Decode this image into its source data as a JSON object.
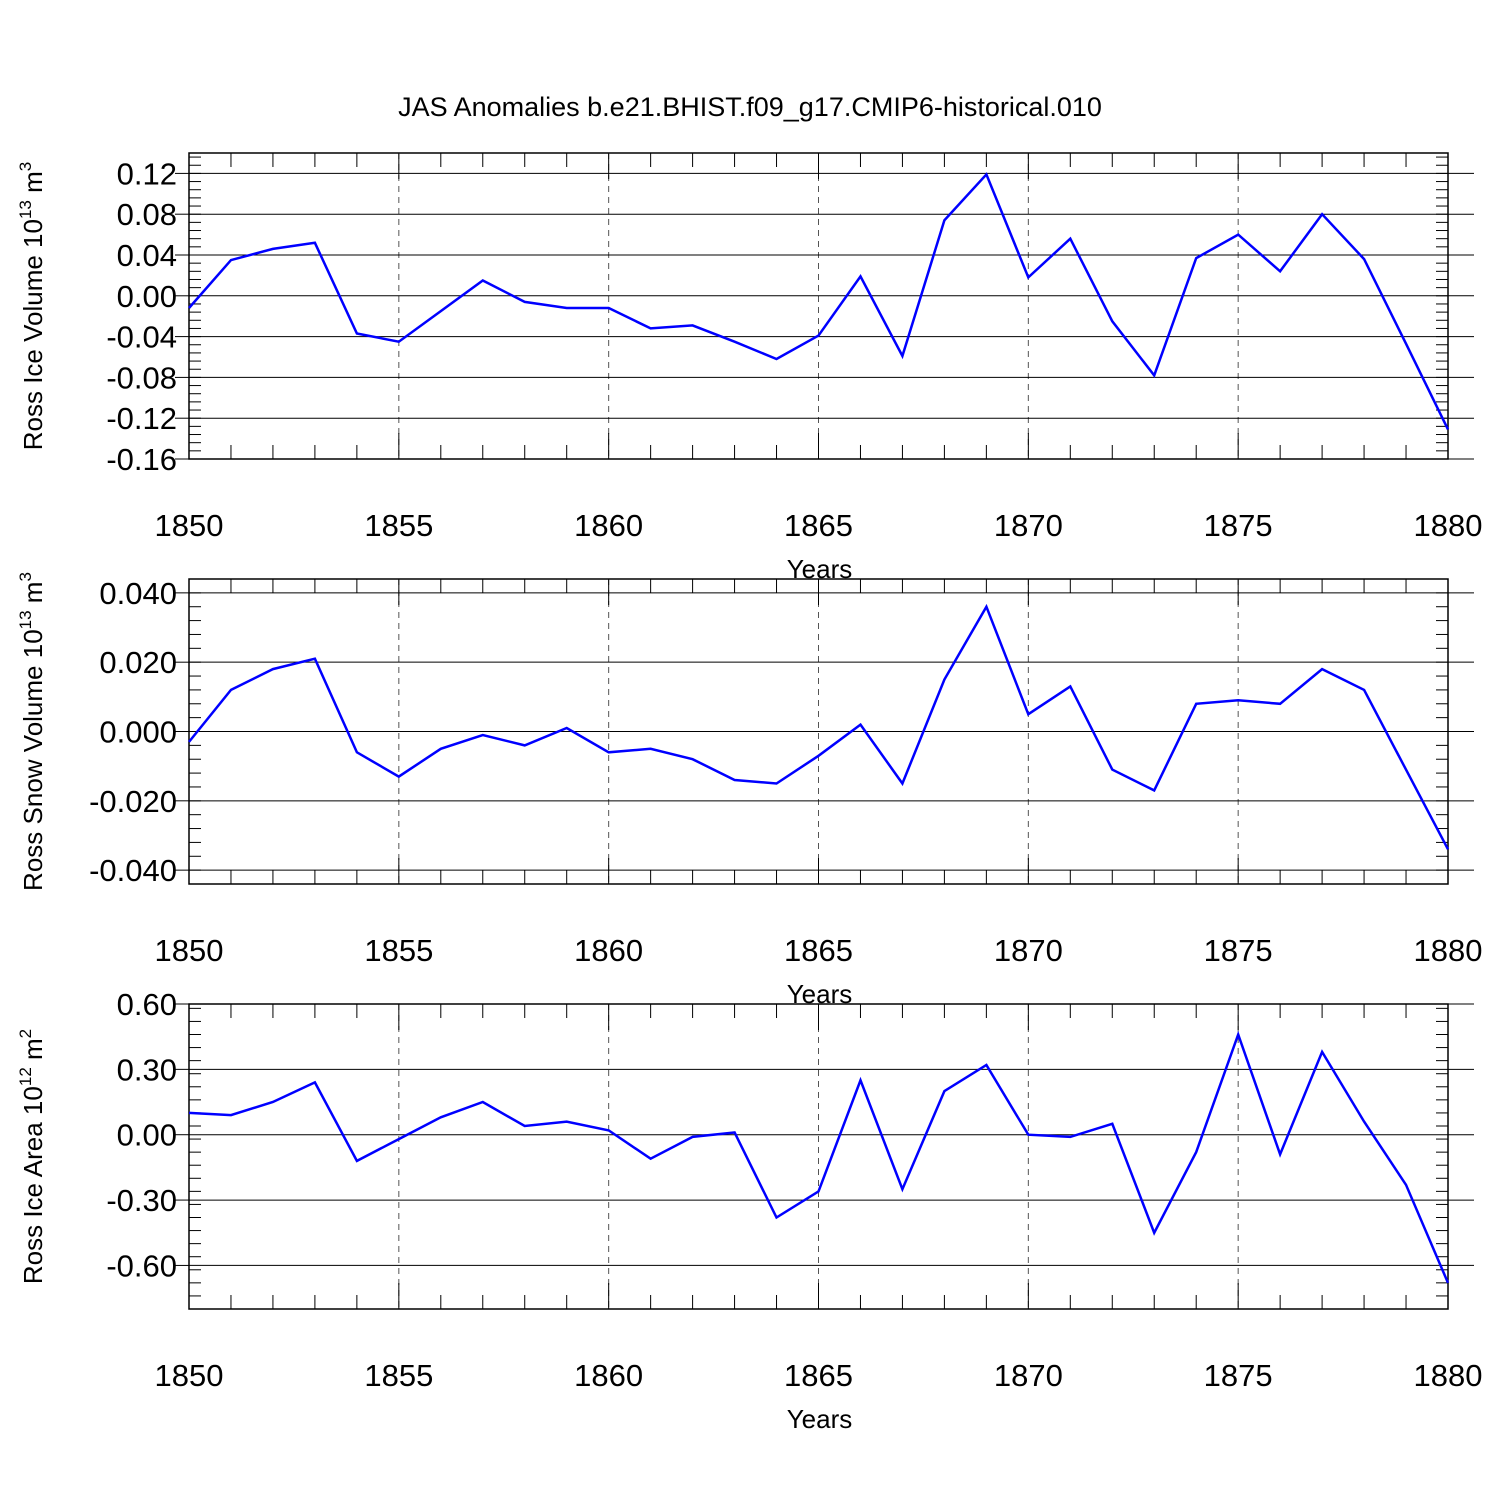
{
  "title": "JAS Anomalies b.e21.BHIST.f09_g17.CMIP6-historical.010",
  "series_color": "#0000ff",
  "chart_data": [
    {
      "type": "line",
      "ylabel": {
        "prefix": "Ross Ice Volume 10",
        "exp": "13",
        "unit": " m",
        "unit_exp": "3"
      },
      "xlabel": "Years",
      "xlim": [
        1850,
        1880
      ],
      "ylim": [
        -0.16,
        0.14
      ],
      "yticks": [
        0.12,
        0.08,
        0.04,
        0.0,
        -0.04,
        -0.08,
        -0.12,
        -0.16
      ],
      "ytick_labels": [
        "0.12",
        "0.08",
        "0.04",
        "0.00",
        "-0.04",
        "-0.08",
        "-0.12",
        "-0.16"
      ],
      "xticks": [
        1850,
        1855,
        1860,
        1865,
        1870,
        1875,
        1880
      ],
      "xtick_labels": [
        "1850",
        "1855",
        "1860",
        "1865",
        "1870",
        "1875",
        "1880"
      ],
      "x": [
        1850,
        1851,
        1852,
        1853,
        1854,
        1855,
        1856,
        1857,
        1858,
        1859,
        1860,
        1861,
        1862,
        1863,
        1864,
        1865,
        1866,
        1867,
        1868,
        1869,
        1870,
        1871,
        1872,
        1873,
        1874,
        1875,
        1876,
        1877,
        1878,
        1879,
        1880
      ],
      "values": [
        -0.012,
        0.035,
        0.046,
        0.052,
        -0.037,
        -0.045,
        -0.015,
        0.015,
        -0.006,
        -0.012,
        -0.012,
        -0.032,
        -0.029,
        -0.045,
        -0.062,
        -0.039,
        0.019,
        -0.059,
        0.074,
        0.119,
        0.018,
        0.056,
        -0.025,
        -0.078,
        0.037,
        0.06,
        0.024,
        0.08,
        0.036,
        -0.047,
        -0.131
      ]
    },
    {
      "type": "line",
      "ylabel": {
        "prefix": "Ross Snow Volume 10",
        "exp": "13",
        "unit": " m",
        "unit_exp": "3"
      },
      "xlabel": "Years",
      "xlim": [
        1850,
        1880
      ],
      "ylim": [
        -0.044,
        0.044
      ],
      "yticks": [
        0.04,
        0.02,
        0.0,
        -0.02,
        -0.04
      ],
      "ytick_labels": [
        "0.040",
        "0.020",
        "0.000",
        "-0.020",
        "-0.040"
      ],
      "xticks": [
        1850,
        1855,
        1860,
        1865,
        1870,
        1875,
        1880
      ],
      "xtick_labels": [
        "1850",
        "1855",
        "1860",
        "1865",
        "1870",
        "1875",
        "1880"
      ],
      "x": [
        1850,
        1851,
        1852,
        1853,
        1854,
        1855,
        1856,
        1857,
        1858,
        1859,
        1860,
        1861,
        1862,
        1863,
        1864,
        1865,
        1866,
        1867,
        1868,
        1869,
        1870,
        1871,
        1872,
        1873,
        1874,
        1875,
        1876,
        1877,
        1878,
        1879,
        1880
      ],
      "values": [
        -0.003,
        0.012,
        0.018,
        0.021,
        -0.006,
        -0.013,
        -0.005,
        -0.001,
        -0.004,
        0.001,
        -0.006,
        -0.005,
        -0.008,
        -0.014,
        -0.015,
        -0.007,
        0.002,
        -0.015,
        0.015,
        0.036,
        0.005,
        0.013,
        -0.011,
        -0.017,
        0.008,
        0.009,
        0.008,
        0.018,
        0.012,
        -0.011,
        -0.034
      ]
    },
    {
      "type": "line",
      "ylabel": {
        "prefix": "Ross Ice Area 10",
        "exp": "12",
        "unit": " m",
        "unit_exp": "2"
      },
      "xlabel": "Years",
      "xlim": [
        1850,
        1880
      ],
      "ylim": [
        -0.8,
        0.6
      ],
      "yticks": [
        0.6,
        0.3,
        0.0,
        -0.3,
        -0.6
      ],
      "ytick_labels": [
        "0.60",
        "0.30",
        "0.00",
        "-0.30",
        "-0.60"
      ],
      "xticks": [
        1850,
        1855,
        1860,
        1865,
        1870,
        1875,
        1880
      ],
      "xtick_labels": [
        "1850",
        "1855",
        "1860",
        "1865",
        "1870",
        "1875",
        "1880"
      ],
      "x": [
        1850,
        1851,
        1852,
        1853,
        1854,
        1855,
        1856,
        1857,
        1858,
        1859,
        1860,
        1861,
        1862,
        1863,
        1864,
        1865,
        1866,
        1867,
        1868,
        1869,
        1870,
        1871,
        1872,
        1873,
        1874,
        1875,
        1876,
        1877,
        1878,
        1879,
        1880
      ],
      "values": [
        0.1,
        0.09,
        0.15,
        0.24,
        -0.12,
        -0.02,
        0.08,
        0.15,
        0.04,
        0.06,
        0.02,
        -0.11,
        -0.01,
        0.01,
        -0.38,
        -0.26,
        0.25,
        -0.25,
        0.2,
        0.32,
        0.0,
        -0.01,
        0.05,
        -0.45,
        -0.08,
        0.46,
        -0.09,
        0.38,
        0.06,
        -0.23,
        -0.68
      ]
    }
  ]
}
